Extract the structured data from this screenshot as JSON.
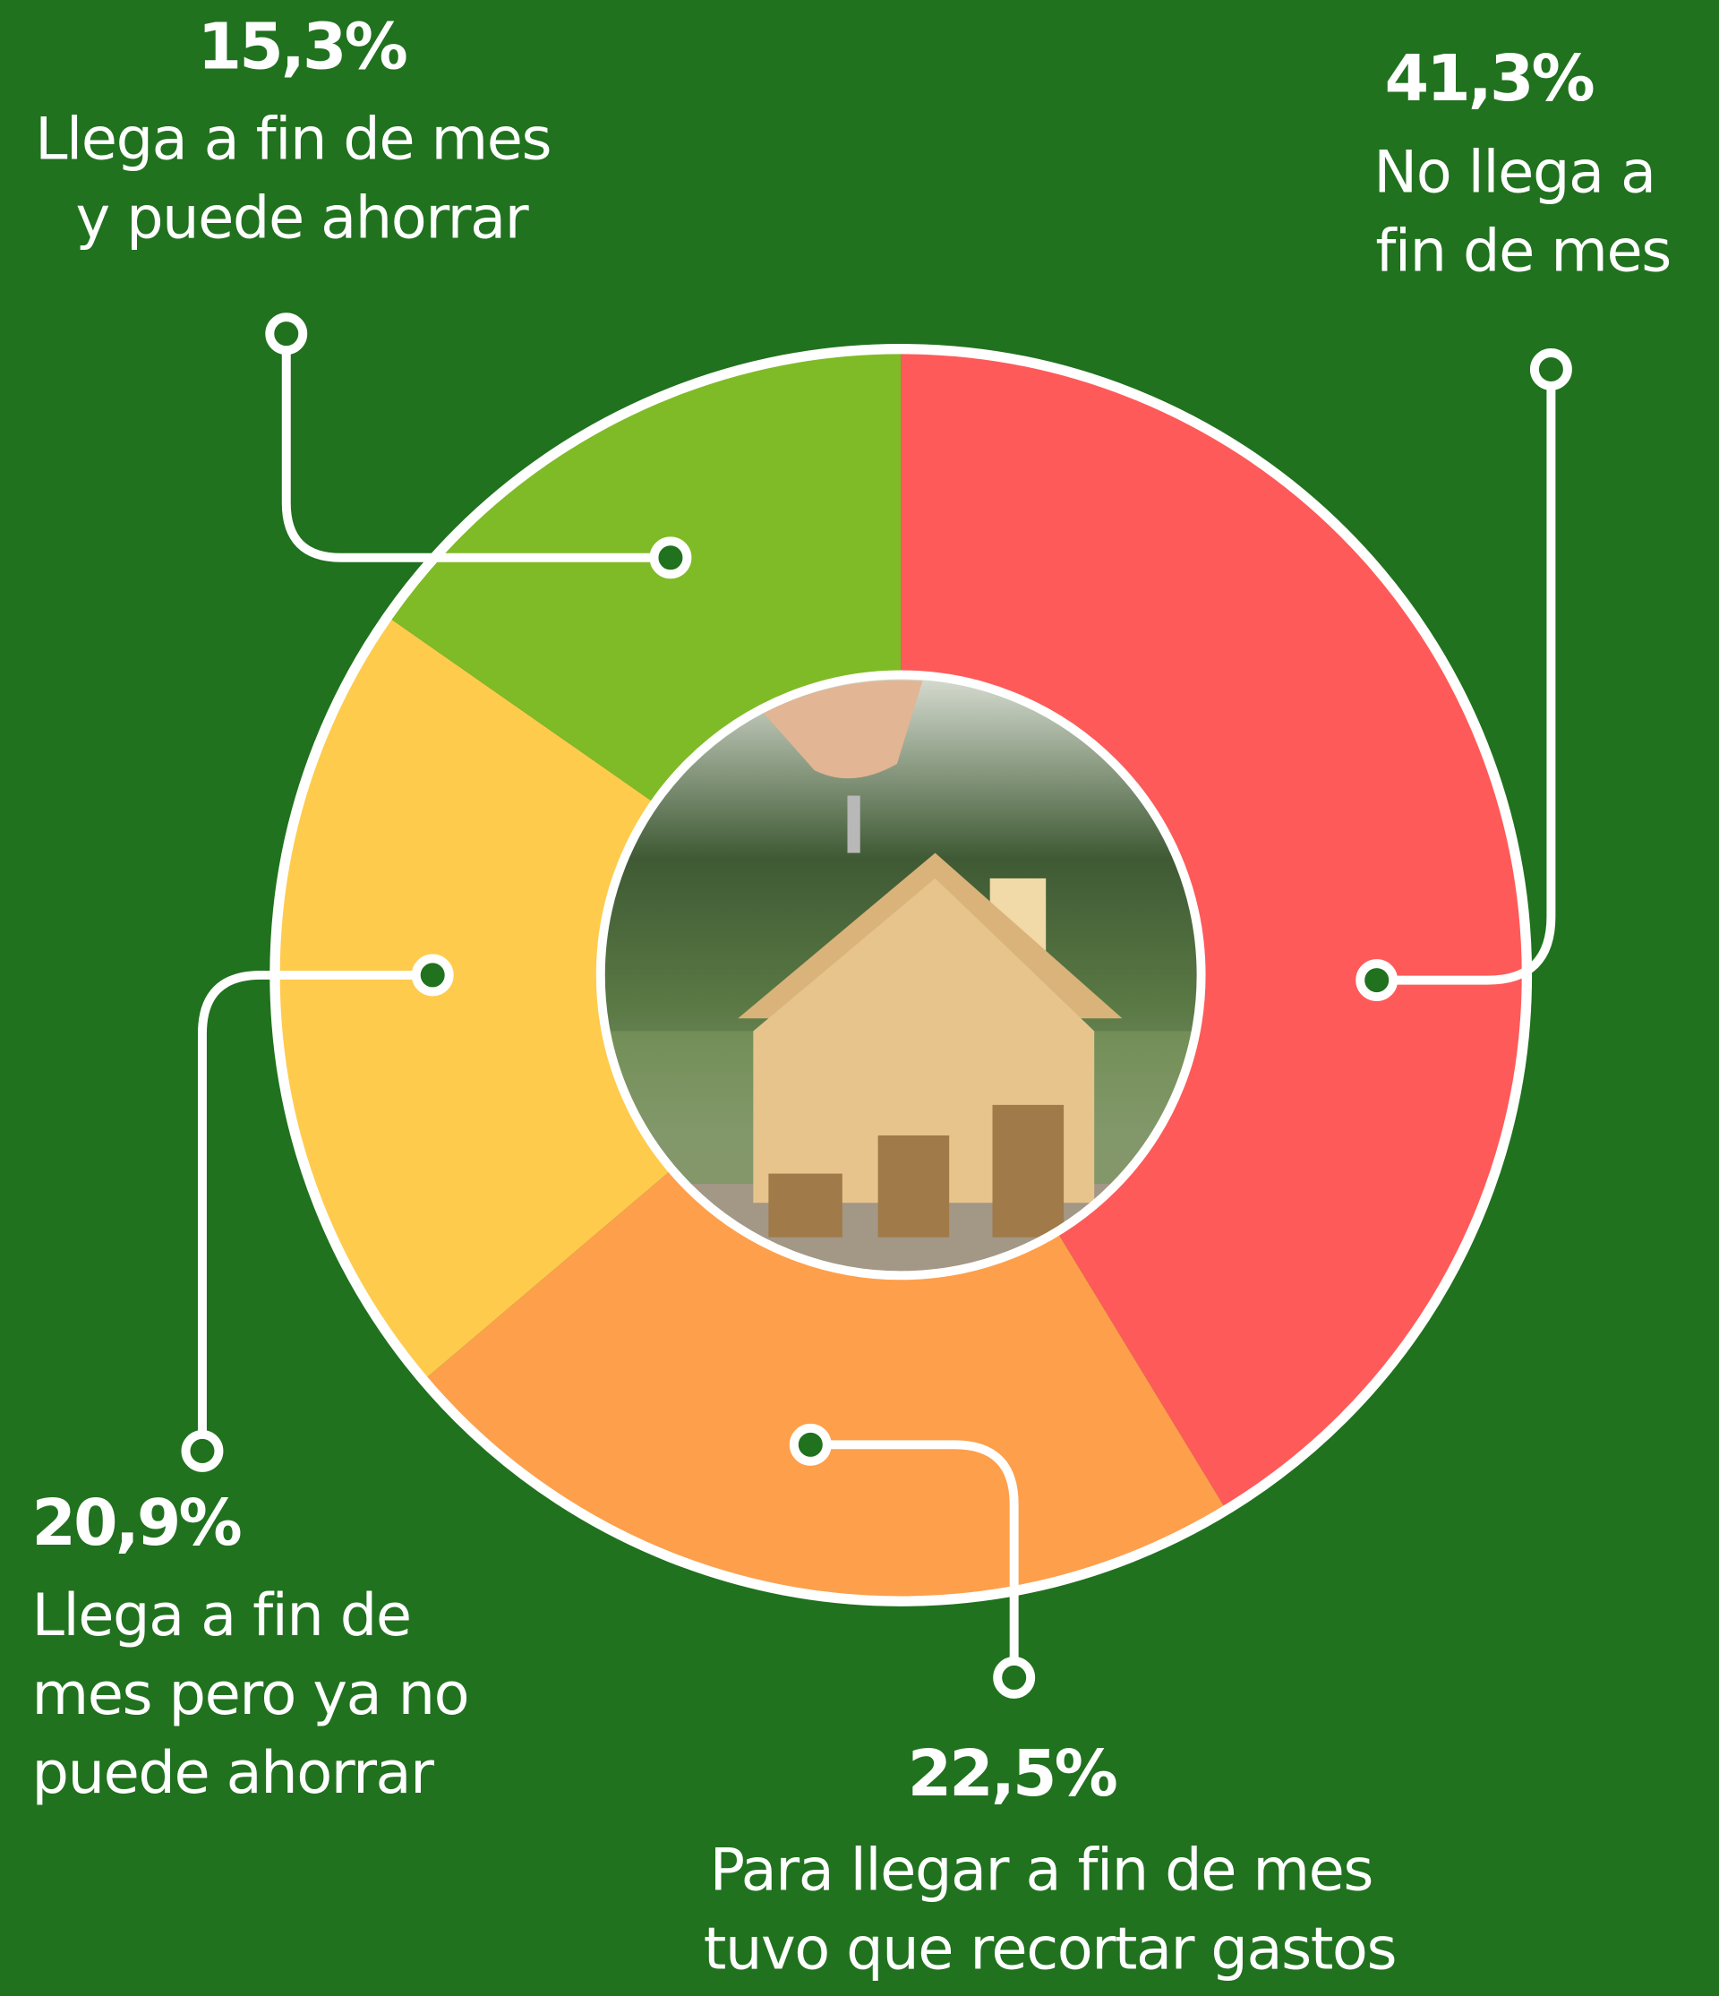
{
  "chart_data": {
    "type": "pie",
    "donut": true,
    "categories": [
      "No llega a fin de mes",
      "Para llegar a fin de mes tuvo que recortar gastos",
      "Llega a fin de mes pero ya no puede ahorrar",
      "Llega a fin de mes y puede ahorrar"
    ],
    "values": [
      41.3,
      22.5,
      20.9,
      15.3
    ],
    "value_labels": [
      "41,3%",
      "22,5%",
      "20,9%",
      "15,3%"
    ],
    "colors": [
      "#fe5a59",
      "#fe9f4b",
      "#fecb4d",
      "#7fbb26"
    ]
  }
}
